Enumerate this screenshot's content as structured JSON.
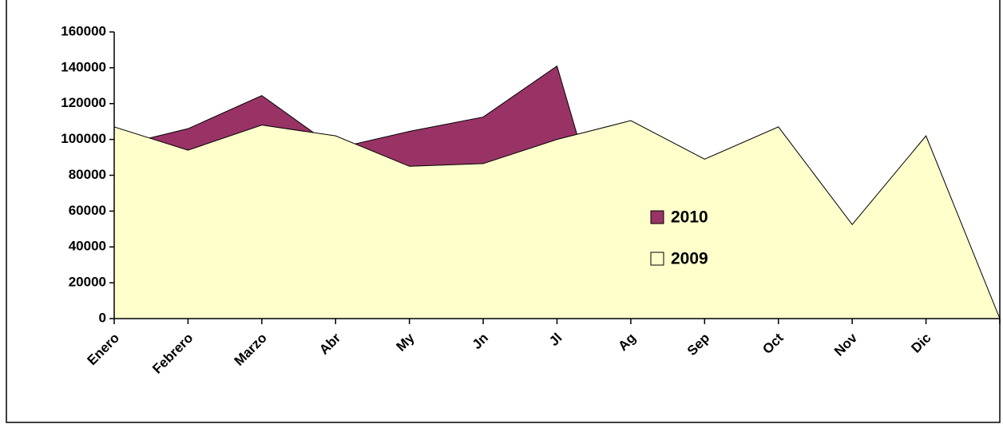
{
  "chart_data": {
    "type": "area",
    "categories": [
      "Enero",
      "Febrero",
      "Marzo",
      "Abr",
      "My",
      "Jn",
      "Jl",
      "Ag",
      "Sep",
      "Oct",
      "Nov",
      "Dic",
      null
    ],
    "series": [
      {
        "name": "2010",
        "color": "#993366",
        "values": [
          96000,
          106000,
          124500,
          95000,
          104500,
          112500,
          141000,
          0,
          0,
          0,
          0,
          0,
          0
        ]
      },
      {
        "name": "2009",
        "color": "#ffffcc",
        "values": [
          107000,
          94000,
          108000,
          102000,
          85000,
          86500,
          100000,
          110500,
          89000,
          107000,
          52500,
          102000,
          0
        ]
      }
    ],
    "ylim": [
      0,
      160000
    ],
    "yticks": [
      0,
      20000,
      40000,
      60000,
      80000,
      100000,
      120000,
      140000,
      160000
    ],
    "grid": false
  }
}
